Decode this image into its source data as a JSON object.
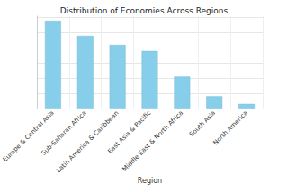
{
  "chart_data": {
    "type": "bar",
    "title": "Distribution of Economies Across Regions",
    "x_label": "Region",
    "categories": [
      "Europe & Central Asia",
      "Sub-Saharan Africa",
      "Latin America & Caribbean",
      "East Asia & Pacific",
      "Middle East & North Africa",
      "South Asia",
      "North America"
    ],
    "values": [
      58,
      48,
      42,
      38,
      21,
      8,
      3
    ],
    "color": "#87ceeb",
    "ylim": [
      0,
      61
    ],
    "yticks": [
      0,
      10,
      20,
      30,
      40,
      50,
      60
    ],
    "grid": true,
    "tick_labels": "x"
  }
}
